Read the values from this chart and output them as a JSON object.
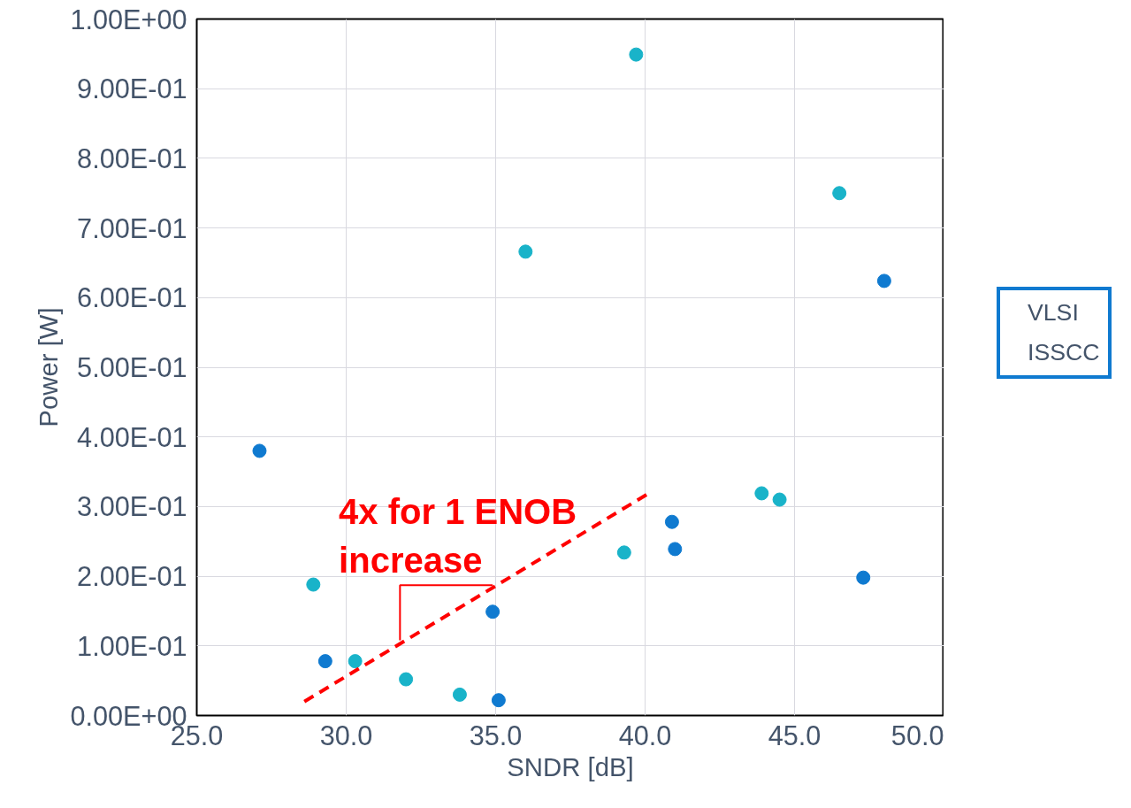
{
  "chart_data": {
    "type": "scatter",
    "xlabel": "SNDR [dB]",
    "ylabel": "Power [W]",
    "xlim": [
      25,
      50
    ],
    "ylim": [
      0,
      1
    ],
    "xticks": [
      {
        "value": 25,
        "label": "25.0"
      },
      {
        "value": 30,
        "label": "30.0"
      },
      {
        "value": 35,
        "label": "35.0"
      },
      {
        "value": 40,
        "label": "40.0"
      },
      {
        "value": 45,
        "label": "45.0"
      },
      {
        "value": 50,
        "label": "50.0"
      }
    ],
    "yticks": [
      {
        "value": 0,
        "label": "0.00E+00"
      },
      {
        "value": 0.1,
        "label": "1.00E-01"
      },
      {
        "value": 0.2,
        "label": "2.00E-01"
      },
      {
        "value": 0.3,
        "label": "3.00E-01"
      },
      {
        "value": 0.4,
        "label": "4.00E-01"
      },
      {
        "value": 0.5,
        "label": "5.00E-01"
      },
      {
        "value": 0.6,
        "label": "6.00E-01"
      },
      {
        "value": 0.7,
        "label": "7.00E-01"
      },
      {
        "value": 0.8,
        "label": "8.00E-01"
      },
      {
        "value": 0.9,
        "label": "9.00E-01"
      },
      {
        "value": 1,
        "label": "1.00E+00"
      }
    ],
    "grid": true,
    "legend": "right",
    "series": [
      {
        "name": "VLSI",
        "color": "#0f7ad0",
        "marker": "circle",
        "x": [
          27.1,
          29.3,
          34.9,
          35.1,
          40.9,
          41.0,
          47.3,
          48.0
        ],
        "values": [
          0.38,
          0.078,
          0.149,
          0.022,
          0.278,
          0.239,
          0.198,
          0.624
        ]
      },
      {
        "name": "ISSCC",
        "color": "#19b3c9",
        "marker": "circle",
        "x": [
          39.7,
          46.5,
          36.0,
          43.9,
          44.5,
          39.3,
          28.9,
          30.3,
          32.0,
          33.8
        ],
        "values": [
          0.949,
          0.75,
          0.666,
          0.319,
          0.31,
          0.234,
          0.188,
          0.078,
          0.052,
          0.03
        ]
      },
      {
        "type": "line",
        "color": "#ff0000",
        "line_style": "dashed",
        "x": [
          28.6,
          40.2
        ],
        "values": [
          0.02,
          0.321
        ]
      }
    ],
    "annotations": [
      {
        "text": "4x for 1 ENOB\nincrease",
        "x": 34.9,
        "y": 0.183
      }
    ]
  }
}
